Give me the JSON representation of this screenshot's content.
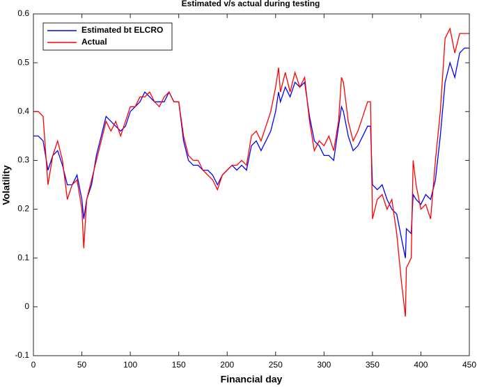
{
  "chart_data": {
    "type": "line",
    "title": "Estimated v/s actual during testing",
    "x_label": "Financial day",
    "y_label": "Volatility",
    "xlim": [
      0,
      450
    ],
    "ylim": [
      -0.1,
      0.6
    ],
    "xticks": [
      0,
      50,
      100,
      150,
      200,
      250,
      300,
      350,
      400,
      450
    ],
    "yticks": [
      -0.1,
      0,
      0.1,
      0.2,
      0.3,
      0.4,
      0.5,
      0.6
    ],
    "legend": "upper left",
    "x": [
      0,
      5,
      10,
      15,
      20,
      25,
      30,
      35,
      40,
      45,
      50,
      52,
      55,
      60,
      65,
      70,
      75,
      80,
      85,
      90,
      95,
      100,
      105,
      110,
      115,
      120,
      125,
      130,
      135,
      140,
      145,
      150,
      155,
      160,
      165,
      170,
      175,
      180,
      185,
      190,
      195,
      200,
      205,
      210,
      215,
      220,
      225,
      230,
      235,
      240,
      245,
      250,
      253,
      255,
      260,
      265,
      270,
      275,
      280,
      285,
      290,
      295,
      300,
      305,
      310,
      315,
      318,
      320,
      325,
      330,
      335,
      340,
      345,
      348,
      350,
      355,
      360,
      365,
      370,
      375,
      380,
      384,
      385,
      390,
      392,
      395,
      400,
      405,
      410,
      415,
      420,
      425,
      430,
      435,
      440,
      445,
      450
    ],
    "series": [
      {
        "name": "Estimated bt ELCRO",
        "color": "#0000ff",
        "values": [
          0.35,
          0.35,
          0.34,
          0.28,
          0.31,
          0.32,
          0.29,
          0.25,
          0.25,
          0.27,
          0.22,
          0.18,
          0.22,
          0.25,
          0.31,
          0.35,
          0.39,
          0.38,
          0.37,
          0.36,
          0.37,
          0.4,
          0.41,
          0.42,
          0.44,
          0.43,
          0.42,
          0.42,
          0.42,
          0.44,
          0.42,
          0.42,
          0.34,
          0.3,
          0.29,
          0.29,
          0.28,
          0.28,
          0.27,
          0.25,
          0.27,
          0.28,
          0.29,
          0.28,
          0.29,
          0.28,
          0.33,
          0.34,
          0.32,
          0.34,
          0.36,
          0.4,
          0.44,
          0.42,
          0.45,
          0.43,
          0.46,
          0.45,
          0.46,
          0.39,
          0.34,
          0.33,
          0.31,
          0.31,
          0.3,
          0.37,
          0.41,
          0.4,
          0.35,
          0.32,
          0.33,
          0.35,
          0.37,
          0.37,
          0.25,
          0.24,
          0.25,
          0.22,
          0.2,
          0.19,
          0.14,
          0.1,
          0.16,
          0.15,
          0.23,
          0.22,
          0.21,
          0.23,
          0.22,
          0.26,
          0.35,
          0.46,
          0.5,
          0.47,
          0.52,
          0.53,
          0.53
        ]
      },
      {
        "name": "Actual",
        "color": "#ff0000",
        "values": [
          0.4,
          0.4,
          0.39,
          0.25,
          0.31,
          0.34,
          0.3,
          0.22,
          0.25,
          0.26,
          0.2,
          0.12,
          0.22,
          0.26,
          0.3,
          0.34,
          0.38,
          0.36,
          0.38,
          0.35,
          0.38,
          0.41,
          0.41,
          0.43,
          0.43,
          0.44,
          0.42,
          0.41,
          0.43,
          0.44,
          0.42,
          0.42,
          0.35,
          0.31,
          0.3,
          0.3,
          0.28,
          0.27,
          0.26,
          0.24,
          0.27,
          0.28,
          0.29,
          0.29,
          0.3,
          0.29,
          0.35,
          0.36,
          0.34,
          0.37,
          0.4,
          0.45,
          0.49,
          0.44,
          0.48,
          0.44,
          0.48,
          0.45,
          0.47,
          0.38,
          0.32,
          0.34,
          0.33,
          0.35,
          0.32,
          0.38,
          0.47,
          0.46,
          0.38,
          0.34,
          0.36,
          0.39,
          0.42,
          0.42,
          0.18,
          0.22,
          0.23,
          0.2,
          0.22,
          0.15,
          0.05,
          -0.02,
          0.08,
          0.1,
          0.3,
          0.25,
          0.2,
          0.21,
          0.18,
          0.3,
          0.4,
          0.55,
          0.57,
          0.52,
          0.56,
          0.56,
          0.56
        ]
      }
    ]
  }
}
